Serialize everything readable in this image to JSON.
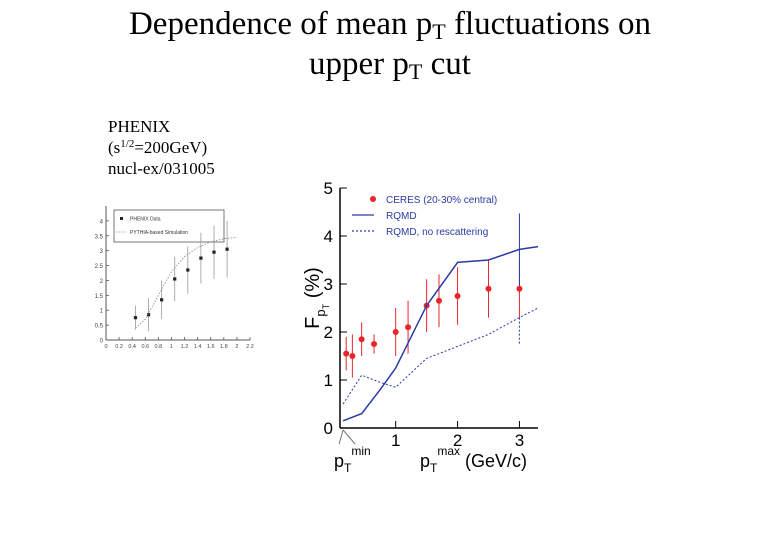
{
  "slide": {
    "title_part1": "Dependence of mean p",
    "title_sub1": "T",
    "title_part2": " fluctuations on",
    "title_line2_part1": "upper p",
    "title_sub2": "T",
    "title_line2_part2": " cut",
    "note_line1": "PHENIX",
    "note_line2_pre": "(s",
    "note_line2_sup": "1/2",
    "note_line2_post": "=200GeV)",
    "note_line3": "nucl-ex/031005"
  },
  "colors": {
    "ceres": "#e8262a",
    "rqmd": "#2a3aa8",
    "axis": "#000000",
    "phenix_data": "#222222",
    "phenix_sim": "#888888"
  },
  "chart_data": [
    {
      "type": "scatter",
      "title": "",
      "ylabel": "F_pT (%)",
      "ylabel_parts": {
        "main": "F",
        "sub": "p",
        "subsub": "T",
        "unit": "(%)"
      },
      "xlabel_parts": {
        "p": "p",
        "sub": "T",
        "sup": "max",
        "unit": "(GeV/c)"
      },
      "xmin_label_parts": {
        "p": "p",
        "sub": "T",
        "sup": "min"
      },
      "xlim": [
        0.1,
        3.3
      ],
      "ylim": [
        0,
        5
      ],
      "xticks": [
        1,
        2,
        3
      ],
      "yticks": [
        0,
        1,
        2,
        3,
        4,
        5
      ],
      "legend": {
        "position": "top-right",
        "entries": [
          "CERES (20-30% central)",
          "RQMD",
          "RQMD, no rescattering"
        ]
      },
      "series": [
        {
          "name": "CERES (20-30% central)",
          "kind": "points",
          "x": [
            0.2,
            0.3,
            0.45,
            0.65,
            1.0,
            1.2,
            1.5,
            1.7,
            2.0,
            2.5,
            3.0
          ],
          "y": [
            1.55,
            1.5,
            1.85,
            1.75,
            2.0,
            2.1,
            2.55,
            2.65,
            2.75,
            2.9,
            2.9
          ],
          "err": [
            0.35,
            0.45,
            0.35,
            0.2,
            0.5,
            0.55,
            0.55,
            0.55,
            0.6,
            0.6,
            0.6
          ]
        },
        {
          "name": "RQMD",
          "kind": "line",
          "x": [
            0.15,
            0.45,
            0.75,
            1.0,
            1.5,
            2.0,
            2.5,
            3.0,
            3.3
          ],
          "y": [
            0.15,
            0.3,
            0.8,
            1.25,
            2.55,
            3.45,
            3.5,
            3.72,
            3.78
          ],
          "err": [
            0,
            0,
            0,
            0,
            0,
            0,
            0,
            0.75,
            0
          ]
        },
        {
          "name": "RQMD, no rescattering",
          "kind": "dotted",
          "x": [
            0.15,
            0.45,
            0.75,
            1.0,
            1.5,
            2.0,
            2.5,
            3.0,
            3.3
          ],
          "y": [
            0.5,
            1.1,
            0.95,
            0.85,
            1.45,
            1.7,
            1.95,
            2.3,
            2.5
          ],
          "err": [
            0,
            0,
            0,
            0,
            0,
            0,
            0,
            0.55,
            0
          ]
        }
      ]
    },
    {
      "type": "scatter",
      "title": "",
      "xlim": [
        0,
        2.2
      ],
      "ylim": [
        0,
        4.5
      ],
      "xticks": [
        0,
        0.2,
        0.4,
        0.6,
        0.8,
        1,
        1.2,
        1.4,
        1.6,
        1.8,
        2,
        2.2
      ],
      "yticks": [
        0,
        0.5,
        1,
        1.5,
        2,
        2.5,
        3,
        3.5,
        4
      ],
      "xtick_labels": [
        "0",
        "0.2",
        "0.4",
        "0.6",
        "0.8",
        "1",
        "1.2",
        "1.4",
        "1.6",
        "1.8",
        "2",
        "2.2"
      ],
      "ytick_labels": [
        "0",
        "0.5",
        "1",
        "1.5",
        "2",
        "2.5",
        "3",
        "3.5",
        "4"
      ],
      "legend": {
        "position": "top-right",
        "entries": [
          "PHENIX Data",
          "PYTHIA-based Simulation"
        ]
      },
      "series": [
        {
          "name": "PHENIX Data",
          "kind": "points",
          "x": [
            0.45,
            0.65,
            0.85,
            1.05,
            1.25,
            1.45,
            1.65,
            1.85
          ],
          "y": [
            0.75,
            0.85,
            1.35,
            2.05,
            2.35,
            2.75,
            2.95,
            3.05
          ],
          "err": [
            0.4,
            0.55,
            0.65,
            0.75,
            0.8,
            0.85,
            0.9,
            0.95
          ]
        },
        {
          "name": "PYTHIA-based Simulation",
          "kind": "dotted",
          "x": [
            0.45,
            0.6,
            0.8,
            1.0,
            1.2,
            1.4,
            1.6,
            1.8,
            2.0
          ],
          "y": [
            0.4,
            0.7,
            1.5,
            2.3,
            2.8,
            3.1,
            3.3,
            3.4,
            3.45
          ],
          "err": [
            0,
            0,
            0,
            0,
            0,
            0,
            0,
            0,
            0
          ]
        }
      ]
    }
  ]
}
